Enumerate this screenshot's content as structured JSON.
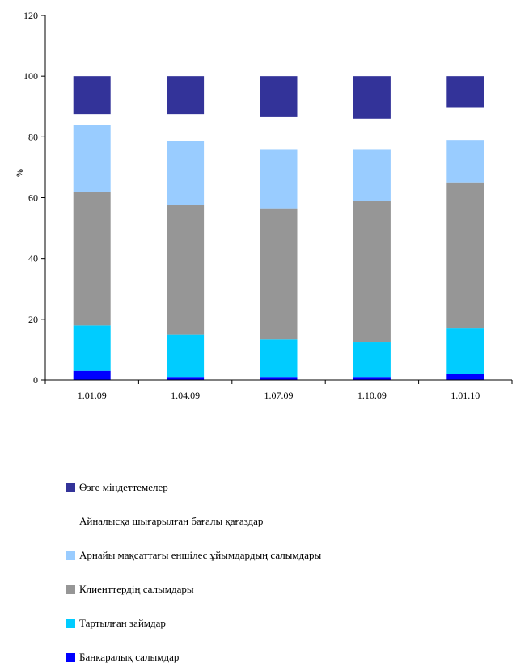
{
  "chart_data": {
    "type": "bar",
    "stacked": true,
    "categories": [
      "1.01.09",
      "1.04.09",
      "1.07.09",
      "1.10.09",
      "1.01.10"
    ],
    "ylabel": "%",
    "ylim": [
      0,
      120
    ],
    "yticks": [
      0,
      20,
      40,
      60,
      80,
      100,
      120
    ],
    "grid": false,
    "legend_position": "bottom",
    "series": [
      {
        "name": "Банкаралық салымдар",
        "color": "#0000ff",
        "values": [
          3,
          1,
          1,
          1,
          2
        ]
      },
      {
        "name": "Тартылған займдар",
        "color": "#00ccff",
        "values": [
          15,
          14,
          12.5,
          11.5,
          15
        ]
      },
      {
        "name": "Клиенттердің салымдары",
        "color": "#969696",
        "values": [
          44,
          42.5,
          43,
          46.5,
          48
        ]
      },
      {
        "name": "Арнайы мақсаттағы еншілес ұйымдардың салымдары",
        "color": "#99ccff",
        "values": [
          22,
          21,
          19.5,
          17,
          14
        ]
      },
      {
        "name": "Айналысқа шығарылған бағалы қағаздар",
        "color": "#ffffff",
        "values": [
          3.5,
          9,
          10.5,
          10,
          10.8
        ]
      },
      {
        "name": "Өзге міндеттемелер",
        "color": "#333399",
        "values": [
          12.5,
          12.5,
          13.5,
          14,
          10.2
        ]
      }
    ]
  }
}
